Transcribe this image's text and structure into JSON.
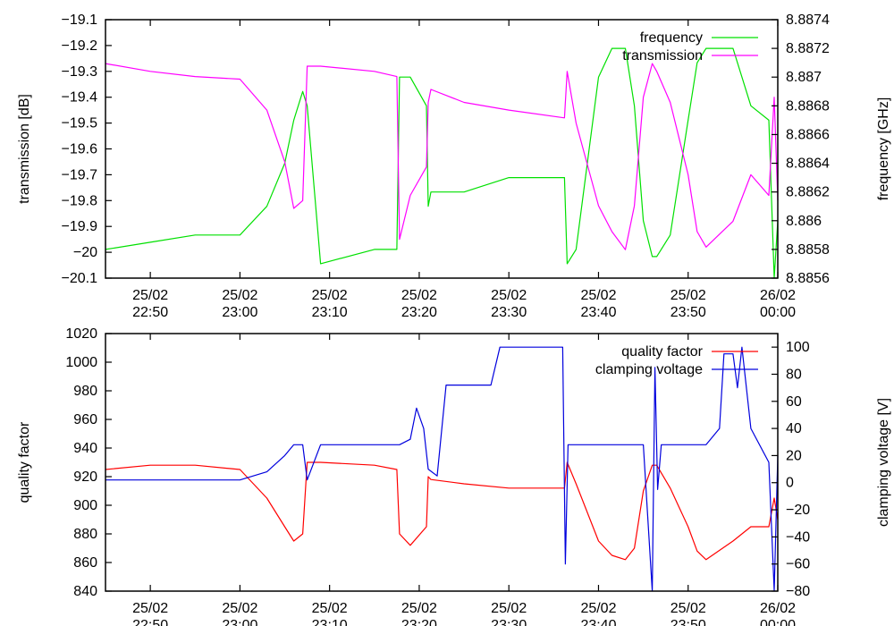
{
  "chart_data": [
    {
      "type": "line",
      "x_ticks": [
        {
          "t": 2850,
          "date": "25/02",
          "time": "22:50"
        },
        {
          "t": 3000,
          "date": "25/02",
          "time": "23:00"
        },
        {
          "t": 3010,
          "date": "25/02",
          "time": "23:10"
        },
        {
          "t": 3020,
          "date": "25/02",
          "time": "23:20"
        },
        {
          "t": 3030,
          "date": "25/02",
          "time": "23:30"
        },
        {
          "t": 3040,
          "date": "25/02",
          "time": "23:40"
        },
        {
          "t": 3050,
          "date": "25/02",
          "time": "23:50"
        },
        {
          "t": 3060,
          "date": "26/02",
          "time": "00:00"
        }
      ],
      "xlim": [
        "25/02 22:45",
        "26/02 00:00"
      ],
      "ylabel_left": "transmission [dB]",
      "ylabel_right": "frequency [GHz]",
      "ylim_left": [
        -20.1,
        -19.1
      ],
      "ylim_right": [
        8.8856,
        8.8874
      ],
      "yticks_left": [
        "−19.1",
        "−19.2",
        "−19.3",
        "−19.4",
        "−19.5",
        "−19.6",
        "−19.7",
        "−19.8",
        "−19.9",
        "−20",
        "−20.1"
      ],
      "yticks_right": [
        "8.8874",
        "8.8872",
        "8.887",
        "8.8868",
        "8.8866",
        "8.8864",
        "8.8862",
        "8.886",
        "8.8858",
        "8.8856"
      ],
      "legend_position": "top-right",
      "series": [
        {
          "name": "frequency",
          "axis": "right",
          "color": "#00e000",
          "x": [
            "22:45",
            "22:50",
            "22:55",
            "23:00",
            "23:03",
            "23:05",
            "23:06",
            "23:07",
            "23:07.5",
            "23:09",
            "23:15",
            "23:17.5",
            "23:17.8",
            "23:19",
            "23:20.8",
            "23:21",
            "23:21.3",
            "23:25",
            "23:30",
            "23:36.2",
            "23:36.5",
            "23:37.5",
            "23:40",
            "23:41.5",
            "23:43",
            "23:44",
            "23:45",
            "23:46",
            "23:46.5",
            "23:48",
            "23:50",
            "23:51",
            "23:52",
            "23:55",
            "23:57",
            "23:59",
            "23:59.6",
            "00:00"
          ],
          "y": [
            8.8858,
            8.88585,
            8.8859,
            8.8859,
            8.8861,
            8.8864,
            8.8867,
            8.8869,
            8.8868,
            8.8857,
            8.8858,
            8.8858,
            8.887,
            8.887,
            8.8868,
            8.8861,
            8.8862,
            8.8862,
            8.8863,
            8.8863,
            8.8857,
            8.8858,
            8.887,
            8.8872,
            8.8872,
            8.8868,
            8.886,
            8.88575,
            8.88575,
            8.8859,
            8.8867,
            8.8871,
            8.8872,
            8.8872,
            8.8868,
            8.8867,
            8.8856,
            8.886
          ]
        },
        {
          "name": "transmission",
          "axis": "left",
          "color": "#ff00ff",
          "x": [
            "22:45",
            "22:50",
            "22:55",
            "23:00",
            "23:03",
            "23:05",
            "23:06",
            "23:07",
            "23:07.5",
            "23:09",
            "23:15",
            "23:17.5",
            "23:17.8",
            "23:19",
            "23:20.8",
            "23:21",
            "23:21.3",
            "23:25",
            "23:30",
            "23:36.2",
            "23:36.5",
            "23:37.5",
            "23:40",
            "23:41.5",
            "23:43",
            "23:44",
            "23:45",
            "23:46",
            "23:46.5",
            "23:48",
            "23:50",
            "23:51",
            "23:52",
            "23:55",
            "23:57",
            "23:59",
            "23:59.6",
            "00:00"
          ],
          "y": [
            -19.27,
            -19.3,
            -19.32,
            -19.33,
            -19.45,
            -19.65,
            -19.83,
            -19.8,
            -19.28,
            -19.28,
            -19.3,
            -19.32,
            -19.95,
            -19.78,
            -19.67,
            -19.42,
            -19.37,
            -19.42,
            -19.45,
            -19.48,
            -19.3,
            -19.5,
            -19.82,
            -19.92,
            -19.99,
            -19.82,
            -19.4,
            -19.27,
            -19.3,
            -19.42,
            -19.7,
            -19.92,
            -19.98,
            -19.88,
            -19.7,
            -19.78,
            -19.4,
            -19.8
          ]
        }
      ]
    },
    {
      "type": "line",
      "x_ticks": [
        {
          "t": 2850,
          "date": "25/02",
          "time": "22:50"
        },
        {
          "t": 3000,
          "date": "25/02",
          "time": "23:00"
        },
        {
          "t": 3010,
          "date": "25/02",
          "time": "23:10"
        },
        {
          "t": 3020,
          "date": "25/02",
          "time": "23:20"
        },
        {
          "t": 3030,
          "date": "25/02",
          "time": "23:30"
        },
        {
          "t": 3040,
          "date": "25/02",
          "time": "23:40"
        },
        {
          "t": 3050,
          "date": "25/02",
          "time": "23:50"
        },
        {
          "t": 3060,
          "date": "26/02",
          "time": "00:00"
        }
      ],
      "xlim": [
        "25/02 22:45",
        "26/02 00:00"
      ],
      "ylabel_left": "quality factor",
      "ylabel_right": "clamping voltage [V]",
      "ylim_left": [
        840,
        1020
      ],
      "ylim_right": [
        -80,
        110
      ],
      "yticks_left": [
        "1020",
        "1000",
        "980",
        "960",
        "940",
        "920",
        "900",
        "880",
        "860",
        "840"
      ],
      "yticks_right": [
        "100",
        "80",
        "60",
        "40",
        "20",
        "0",
        "−20",
        "−40",
        "−60",
        "−80"
      ],
      "legend_position": "top-right",
      "series": [
        {
          "name": "quality factor",
          "axis": "left",
          "color": "#ff0000",
          "x": [
            "22:45",
            "22:50",
            "22:55",
            "23:00",
            "23:03",
            "23:05",
            "23:06",
            "23:07",
            "23:07.5",
            "23:09",
            "23:15",
            "23:17.5",
            "23:17.8",
            "23:19",
            "23:20.8",
            "23:21",
            "23:21.3",
            "23:25",
            "23:30",
            "23:36.2",
            "23:36.5",
            "23:37.5",
            "23:40",
            "23:41.5",
            "23:43",
            "23:44",
            "23:45",
            "23:46",
            "23:46.5",
            "23:48",
            "23:50",
            "23:51",
            "23:52",
            "23:55",
            "23:57",
            "23:59",
            "23:59.6",
            "00:00"
          ],
          "y": [
            925,
            928,
            928,
            925,
            905,
            885,
            875,
            880,
            930,
            930,
            928,
            925,
            880,
            872,
            885,
            920,
            918,
            915,
            912,
            912,
            930,
            915,
            875,
            865,
            862,
            870,
            910,
            928,
            928,
            912,
            885,
            868,
            862,
            875,
            885,
            885,
            905,
            890
          ]
        },
        {
          "name": "clamping voltage",
          "axis": "right",
          "color": "#0000dd",
          "x": [
            "22:45",
            "22:50",
            "22:55",
            "23:00",
            "23:03",
            "23:05",
            "23:06",
            "23:07",
            "23:07.5",
            "23:09",
            "23:15",
            "23:17.5",
            "23:17.8",
            "23:19",
            "23:19.7",
            "23:20.5",
            "23:21",
            "23:22",
            "23:23",
            "23:28",
            "23:29",
            "23:35",
            "23:36",
            "23:36.3",
            "23:36.6",
            "23:37",
            "23:43",
            "23:45",
            "23:46",
            "23:46.3",
            "23:46.6",
            "23:47",
            "23:47.3",
            "23:48",
            "23:52",
            "23:53.5",
            "23:54",
            "23:55",
            "23:55.5",
            "23:56",
            "23:57",
            "23:59",
            "23:59.6",
            "00:00"
          ],
          "y": [
            2,
            2,
            2,
            2,
            8,
            20,
            28,
            28,
            2,
            28,
            28,
            28,
            28,
            32,
            55,
            40,
            10,
            5,
            72,
            72,
            100,
            100,
            100,
            -60,
            28,
            28,
            28,
            28,
            -80,
            85,
            -5,
            28,
            28,
            28,
            28,
            40,
            95,
            95,
            70,
            100,
            40,
            15,
            -80,
            20
          ]
        }
      ]
    }
  ]
}
